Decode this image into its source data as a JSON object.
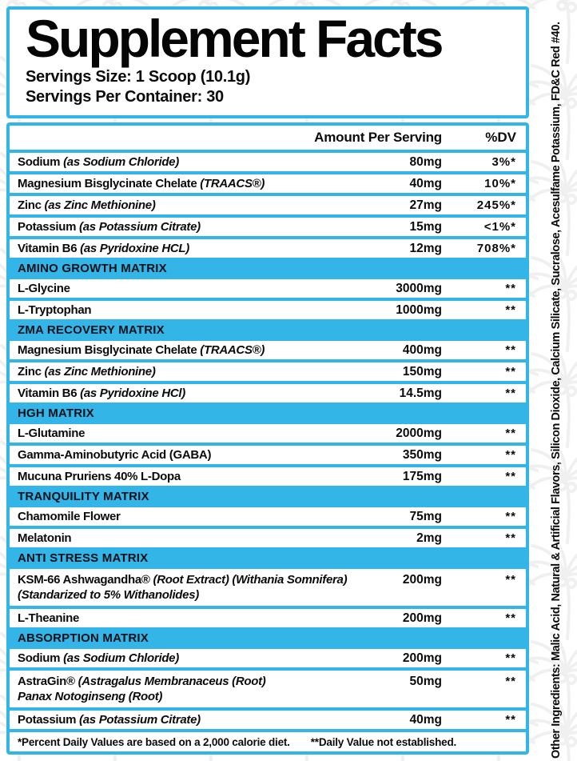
{
  "title": "Supplement Facts",
  "serving_size": "Servings Size: 1 Scoop (10.1g)",
  "servings_per_container": "Servings Per Container: 30",
  "columns": {
    "amount": "Amount Per Serving",
    "dv": "%DV"
  },
  "sections": [
    {
      "header": "",
      "rows": [
        {
          "name": "Sodium",
          "detail": "(as Sodium Chloride)",
          "amount": "80mg",
          "dv": "3%*"
        },
        {
          "name": "Magnesium Bisglycinate Chelate",
          "detail": "(TRAACS®)",
          "amount": "40mg",
          "dv": "10%*"
        },
        {
          "name": "Zinc",
          "detail": "(as Zinc Methionine)",
          "amount": "27mg",
          "dv": "245%*"
        },
        {
          "name": "Potassium",
          "detail": "(as Potassium Citrate)",
          "amount": "15mg",
          "dv": "<1%*"
        },
        {
          "name": "Vitamin B6",
          "detail": "(as Pyridoxine HCL)",
          "amount": "12mg",
          "dv": "708%*"
        }
      ]
    },
    {
      "header": "AMINO GROWTH MATRIX",
      "rows": [
        {
          "name": "L-Glycine",
          "amount": "3000mg",
          "dv": "**"
        },
        {
          "name": "L-Tryptophan",
          "amount": "1000mg",
          "dv": "**"
        }
      ]
    },
    {
      "header": "ZMA RECOVERY MATRIX",
      "rows": [
        {
          "name": "Magnesium Bisglycinate Chelate",
          "detail": "(TRAACS®)",
          "amount": "400mg",
          "dv": "**"
        },
        {
          "name": "Zinc",
          "detail": "(as Zinc Methionine)",
          "amount": "150mg",
          "dv": "**"
        },
        {
          "name": "Vitamin B6",
          "detail": "(as Pyridoxine HCl)",
          "amount": "14.5mg",
          "dv": "**"
        }
      ]
    },
    {
      "header": "HGH MATRIX",
      "rows": [
        {
          "name": "L-Glutamine",
          "amount": "2000mg",
          "dv": "**"
        },
        {
          "name": "Gamma-Aminobutyric Acid (GABA)",
          "amount": "350mg",
          "dv": "**"
        },
        {
          "name": "Mucuna Pruriens 40% L-Dopa",
          "amount": "175mg",
          "dv": "**"
        }
      ]
    },
    {
      "header": "TRANQUILITY MATRIX",
      "rows": [
        {
          "name": "Chamomile Flower",
          "amount": "75mg",
          "dv": "**"
        },
        {
          "name": "Melatonin",
          "amount": "2mg",
          "dv": "**"
        }
      ]
    },
    {
      "header": "ANTI STRESS MATRIX",
      "rows": [
        {
          "name": "KSM-66 Ashwagandha®",
          "detail": "(Root Extract) (Withania Somnifera)",
          "line2": "(Standarized to 5% Withanolides)",
          "amount": "200mg",
          "dv": "**"
        },
        {
          "name": "L-Theanine",
          "amount": "200mg",
          "dv": "**"
        }
      ]
    },
    {
      "header": "ABSORPTION MATRIX",
      "rows": [
        {
          "name": "Sodium",
          "detail": "(as Sodium Chloride)",
          "amount": "200mg",
          "dv": "**"
        },
        {
          "name": "AstraGin®",
          "detail": "(Astragalus Membranaceus (Root)",
          "line2": "Panax Notoginseng (Root)",
          "amount": "50mg",
          "dv": "**"
        },
        {
          "name": "Potassium",
          "detail": "(as Potassium Citrate)",
          "amount": "40mg",
          "dv": "**"
        }
      ]
    }
  ],
  "footnotes": {
    "daily_values": "*Percent Daily Values are based on a 2,000 calorie diet.",
    "not_established": "**Daily Value not established."
  },
  "side_text": "Other Ingredients: Malic Acid, Natural & Artificial Flavors, Silicon Dioxide, Calcium Silicate, Sucralose, Acesulfame Potassium, FD&C Red #40.",
  "colors": {
    "accent_blue": "#33B5E8",
    "text_black": "#0B0B0B"
  }
}
